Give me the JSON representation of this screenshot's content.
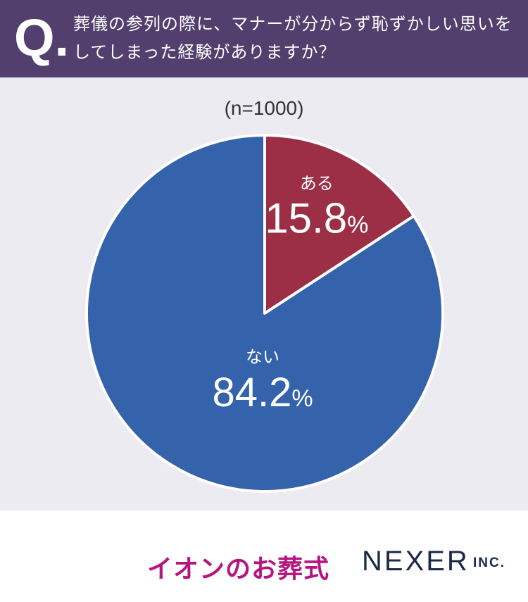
{
  "header": {
    "q_mark": "Q.",
    "question": "葬儀の参列の際に、マナーが分からず恥ずかしい思いをしてしまった経験がありますか？"
  },
  "sample_size": "(n=1000)",
  "chart_data": {
    "type": "pie",
    "title": "",
    "categories": [
      "ある",
      "ない"
    ],
    "values": [
      15.8,
      84.2
    ],
    "unit": "%",
    "colors": [
      "#9c2f46",
      "#3462ab"
    ],
    "start_angle_deg": 0,
    "direction": "clockwise"
  },
  "footer": {
    "aeon_logo": "イオンのお葬式",
    "nexer_logo": "NEXER",
    "nexer_suffix": "INC."
  }
}
